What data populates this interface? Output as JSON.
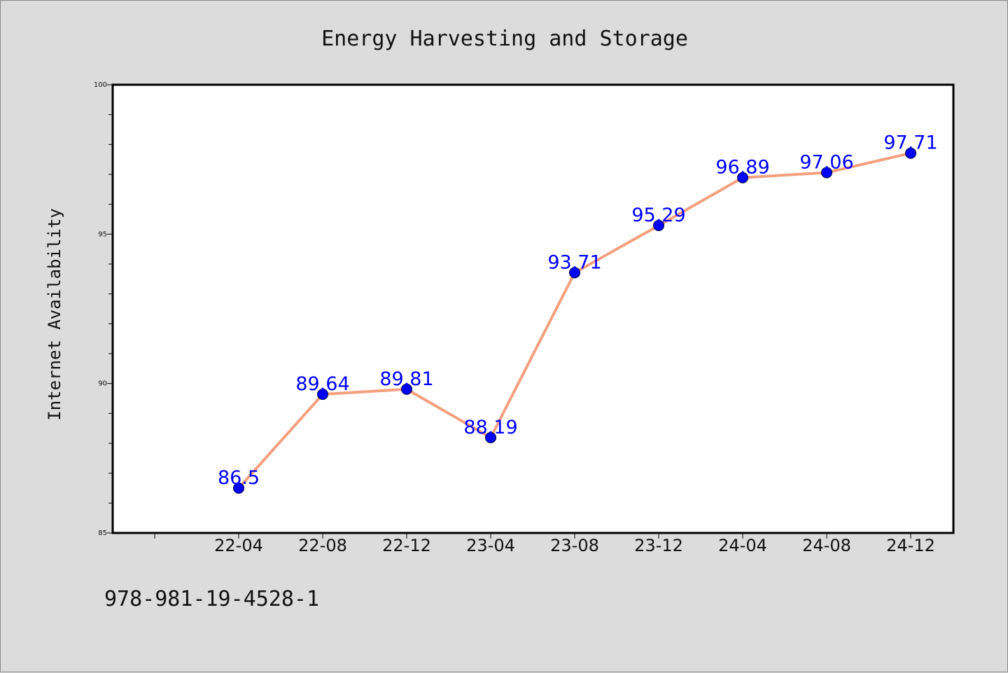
{
  "colors": {
    "background": "#dcdcdc",
    "plot_background": "#ffffff",
    "line": "#f4a07e",
    "marker": "#0000ff",
    "data_label": "#0000ff",
    "axis": "#000000"
  },
  "footnote": "978-981-19-4528-1",
  "chart_data": {
    "type": "line",
    "title": "Energy Harvesting and Storage",
    "xlabel": "",
    "ylabel": "Internet Availability",
    "categories": [
      "22-04",
      "22-08",
      "22-12",
      "23-04",
      "23-08",
      "23-12",
      "24-04",
      "24-08",
      "24-12"
    ],
    "series": [
      {
        "values": [
          86.5,
          89.64,
          89.81,
          88.19,
          93.71,
          95.29,
          96.89,
          97.06,
          97.71
        ],
        "labels": [
          "86.5",
          "89.64",
          "89.81",
          "88.19",
          "93.71",
          "95.29",
          "96.89",
          "97.06",
          "97.71"
        ]
      }
    ],
    "ylim": [
      85,
      100
    ],
    "yticks": [
      85,
      90,
      95,
      100
    ],
    "grid": false,
    "legend": "none"
  }
}
